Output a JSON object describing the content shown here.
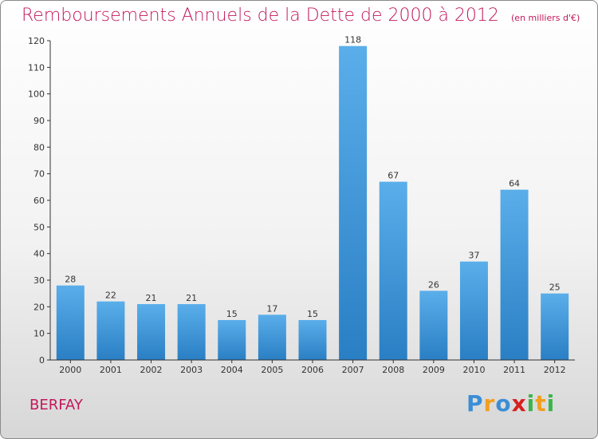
{
  "chart_data": {
    "type": "bar",
    "title": "Remboursements Annuels de la Dette de 2000 à 2012",
    "subtitle": "(en milliers d'€)",
    "xlabel": "",
    "ylabel": "",
    "categories": [
      "2000",
      "2001",
      "2002",
      "2003",
      "2004",
      "2005",
      "2006",
      "2007",
      "2008",
      "2009",
      "2010",
      "2011",
      "2012"
    ],
    "values": [
      28,
      22,
      21,
      21,
      15,
      17,
      15,
      118,
      67,
      26,
      37,
      64,
      25
    ],
    "ylim": [
      0,
      120
    ],
    "yticks": [
      0,
      10,
      20,
      30,
      40,
      50,
      60,
      70,
      80,
      90,
      100,
      110,
      120
    ],
    "grid": false,
    "legend": "none",
    "bar_color": "#3d94d8"
  },
  "commune": "BERFAY",
  "logo": {
    "letters": [
      "P",
      "r",
      "o",
      "x",
      "i",
      "t",
      "i"
    ],
    "colors": [
      "#3b8ed6",
      "#f0a020",
      "#3b8ed6",
      "#d62020",
      "#3bb54a",
      "#f0a020",
      "#3bb54a"
    ]
  }
}
